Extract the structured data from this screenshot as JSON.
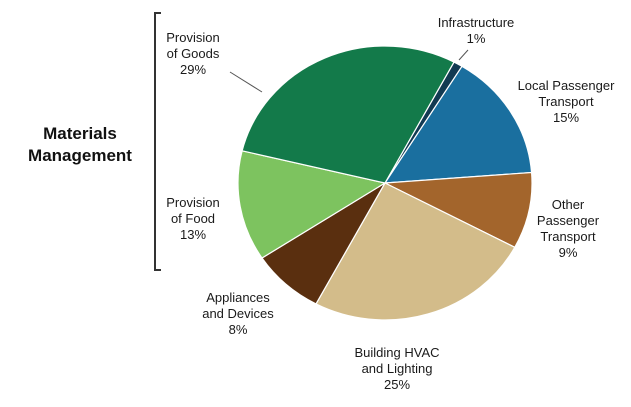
{
  "chart_data": {
    "type": "pie",
    "title": "",
    "slices": [
      {
        "name": "Infrastructure",
        "value": 1,
        "display": "1%",
        "color": "#123a52"
      },
      {
        "name": "Local Passenger Transport",
        "value": 15,
        "display": "15%",
        "color": "#1a6f9f"
      },
      {
        "name": "Other Passenger Transport",
        "value": 9,
        "display": "9%",
        "color": "#a3652c"
      },
      {
        "name": "Building HVAC and Lighting",
        "value": 25,
        "display": "25%",
        "color": "#d3bc8a"
      },
      {
        "name": "Appliances and Devices",
        "value": 8,
        "display": "8%",
        "color": "#5a2f0f"
      },
      {
        "name": "Provision of Food",
        "value": 13,
        "display": "13%",
        "color": "#7dc35f"
      },
      {
        "name": "Provision of Goods",
        "value": 29,
        "display": "29%",
        "color": "#137a4a"
      }
    ],
    "labels": [
      {
        "lines": [
          "Infrastructure",
          "1%"
        ]
      },
      {
        "lines": [
          "Local Passenger",
          "Transport",
          "15%"
        ]
      },
      {
        "lines": [
          "Other",
          "Passenger",
          "Transport",
          "9%"
        ]
      },
      {
        "lines": [
          "Building HVAC",
          "and Lighting",
          "25%"
        ]
      },
      {
        "lines": [
          "Appliances",
          "and Devices",
          "8%"
        ]
      },
      {
        "lines": [
          "Provision",
          "of Food",
          "13%"
        ]
      },
      {
        "lines": [
          "Provision",
          "of Goods",
          "29%"
        ]
      }
    ],
    "group": {
      "lines": [
        "Materials",
        "Management"
      ],
      "members": [
        "Provision of Goods",
        "Provision of Food"
      ]
    },
    "legend": "none",
    "start_angle_deg": 28
  }
}
